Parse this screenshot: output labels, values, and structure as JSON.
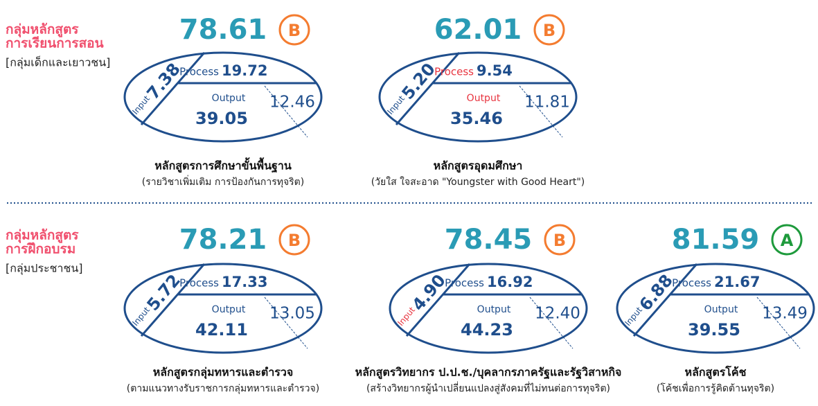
{
  "groups": [
    {
      "title_lines": [
        "กลุ่มหลักสูตร",
        "การเรียนการสอน"
      ],
      "subtitle": "[กลุ่มเด็กและเยาวชน]",
      "items": [
        {
          "score": "78.61",
          "grade": "B",
          "grade_color": "#f47c30",
          "input_label": "Input",
          "input": "7.38",
          "process_label": "Process",
          "process": "19.72",
          "output_label": "Output",
          "output": "39.05",
          "outcome": "12.46",
          "label_colors": {
            "input": "#1f4e8c",
            "process": "#1f4e8c",
            "output": "#1f4e8c"
          },
          "title": "หลักสูตรการศึกษาขั้นพื้นฐาน",
          "subtitle": "(รายวิชาเพิ่มเติม การป้องกันการทุจริต)"
        },
        {
          "score": "62.01",
          "grade": "B",
          "grade_color": "#f47c30",
          "input_label": "Input",
          "input": "5.20",
          "process_label": "Process",
          "process": "9.54",
          "output_label": "Output",
          "output": "35.46",
          "outcome": "11.81",
          "label_colors": {
            "input": "#1f4e8c",
            "process": "#e8343f",
            "output": "#e8343f"
          },
          "title": "หลักสูตรอุดมศึกษา",
          "subtitle": "(วัยใส ใจสะอาด \"Youngster with Good Heart\")"
        }
      ]
    },
    {
      "title_lines": [
        "กลุ่มหลักสูตร",
        "การฝึกอบรม"
      ],
      "subtitle": "[กลุ่มประชาชน]",
      "items": [
        {
          "score": "78.21",
          "grade": "B",
          "grade_color": "#f47c30",
          "input_label": "Input",
          "input": "5.72",
          "process_label": "Process",
          "process": "17.33",
          "output_label": "Output",
          "output": "42.11",
          "outcome": "13.05",
          "label_colors": {
            "input": "#1f4e8c",
            "process": "#1f4e8c",
            "output": "#1f4e8c"
          },
          "title": "หลักสูตรกลุ่มทหารและตำรวจ",
          "subtitle": "(ตามแนวทางรับราชการกลุ่มทหารและตำรวจ)"
        },
        {
          "score": "78.45",
          "grade": "B",
          "grade_color": "#f47c30",
          "input_label": "Input",
          "input": "4.90",
          "process_label": "Process",
          "process": "16.92",
          "output_label": "Output",
          "output": "44.23",
          "outcome": "12.40",
          "label_colors": {
            "input": "#e8343f",
            "process": "#1f4e8c",
            "output": "#1f4e8c"
          },
          "title": "หลักสูตรวิทยากร ป.ป.ช./บุคลากรภาครัฐและรัฐวิสาหกิจ",
          "subtitle": "(สร้างวิทยากรผู้นำเปลี่ยนแปลงสู่สังคมที่ไม่ทนต่อการทุจริต)"
        },
        {
          "score": "81.59",
          "grade": "A",
          "grade_color": "#1e9a3c",
          "input_label": "Input",
          "input": "6.88",
          "process_label": "Process",
          "process": "21.67",
          "output_label": "Output",
          "output": "39.55",
          "outcome": "13.49",
          "label_colors": {
            "input": "#1f4e8c",
            "process": "#1f4e8c",
            "output": "#1f4e8c"
          },
          "title": "หลักสูตรโค้ช",
          "subtitle": "(โค้ชเพื่อการรู้คิดต้านทุจริต)"
        }
      ]
    }
  ]
}
